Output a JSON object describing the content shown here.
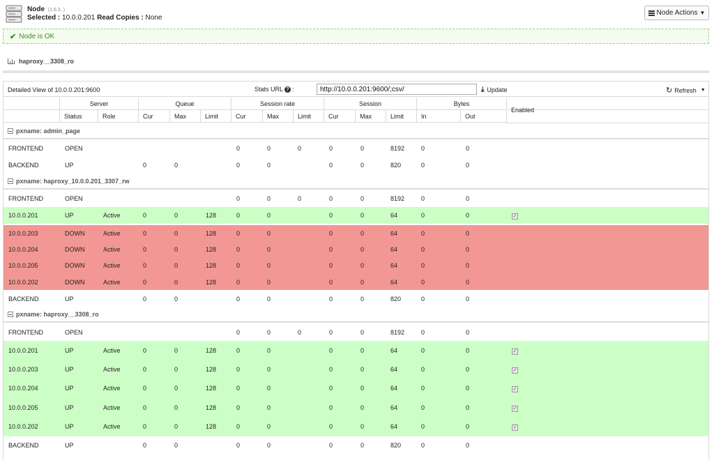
{
  "header": {
    "title": "Node",
    "version": "(1.6.3, )",
    "selected_label": "Selected :",
    "selected_value": "10.0.0.201",
    "read_copies_label": "Read Copies :",
    "read_copies_value": "None",
    "actions_button": "Node Actions"
  },
  "status": {
    "message": "Node is OK",
    "color": "#3c8f1e"
  },
  "section": {
    "title": "haproxy__3308_ro"
  },
  "toolbar": {
    "detail_label": "Detailed View of 10.0.0.201:9600",
    "stats_url_label": "Stats URL",
    "stats_url_value": "http://10.0.0.201:9600/;csv/",
    "update_label": "Update",
    "refresh_label": "Refresh"
  },
  "columns": {
    "groups": [
      "Server",
      "Queue",
      "Session rate",
      "Session",
      "Bytes",
      "Enabled"
    ],
    "subs": [
      "Status",
      "Role",
      "Cur",
      "Max",
      "Limit",
      "Cur",
      "Max",
      "Limit",
      "Cur",
      "Max",
      "Limit",
      "In",
      "Out"
    ]
  },
  "groups": [
    {
      "title": "pxname: admin_page",
      "rows": [
        {
          "state": "plain",
          "cells": [
            "FRONTEND",
            "OPEN",
            "",
            "",
            "",
            "",
            "0",
            "0",
            "0",
            "0",
            "0",
            "8192",
            "0",
            "0"
          ],
          "enabled": false
        },
        {
          "state": "plain",
          "cells": [
            "BACKEND",
            "UP",
            "",
            "0",
            "0",
            "",
            "0",
            "0",
            "",
            "0",
            "0",
            "820",
            "0",
            "0"
          ],
          "enabled": false
        }
      ]
    },
    {
      "title": "pxname: haproxy_10.0.0.201_3307_rw",
      "rows": [
        {
          "state": "plain",
          "cells": [
            "FRONTEND",
            "OPEN",
            "",
            "",
            "",
            "",
            "0",
            "0",
            "0",
            "0",
            "0",
            "8192",
            "0",
            "0"
          ],
          "enabled": false
        },
        {
          "state": "ok",
          "cells": [
            "10.0.0.201",
            "UP",
            "Active",
            "0",
            "0",
            "128",
            "0",
            "0",
            "",
            "0",
            "0",
            "64",
            "0",
            "0"
          ],
          "enabled": true
        },
        {
          "state": "down",
          "cells": [
            "10.0.0.203",
            "DOWN",
            "Active",
            "0",
            "0",
            "128",
            "0",
            "0",
            "",
            "0",
            "0",
            "64",
            "0",
            "0"
          ],
          "enabled": false
        },
        {
          "state": "down",
          "cells": [
            "10.0.0.204",
            "DOWN",
            "Active",
            "0",
            "0",
            "128",
            "0",
            "0",
            "",
            "0",
            "0",
            "64",
            "0",
            "0"
          ],
          "enabled": false
        },
        {
          "state": "down",
          "cells": [
            "10.0.0.205",
            "DOWN",
            "Active",
            "0",
            "0",
            "128",
            "0",
            "0",
            "",
            "0",
            "0",
            "64",
            "0",
            "0"
          ],
          "enabled": false
        },
        {
          "state": "down",
          "cells": [
            "10.0.0.202",
            "DOWN",
            "Active",
            "0",
            "0",
            "128",
            "0",
            "0",
            "",
            "0",
            "0",
            "64",
            "0",
            "0"
          ],
          "enabled": false
        },
        {
          "state": "plain",
          "cells": [
            "BACKEND",
            "UP",
            "",
            "0",
            "0",
            "",
            "0",
            "0",
            "",
            "0",
            "0",
            "820",
            "0",
            "0"
          ],
          "enabled": false
        }
      ]
    },
    {
      "title": "pxname: haproxy__3308_ro",
      "rows": [
        {
          "state": "plain",
          "cells": [
            "FRONTEND",
            "OPEN",
            "",
            "",
            "",
            "",
            "0",
            "0",
            "0",
            "0",
            "0",
            "8192",
            "0",
            "0"
          ],
          "enabled": false
        },
        {
          "state": "ok",
          "cells": [
            "10.0.0.201",
            "UP",
            "Active",
            "0",
            "0",
            "128",
            "0",
            "0",
            "",
            "0",
            "0",
            "64",
            "0",
            "0"
          ],
          "enabled": true
        },
        {
          "state": "ok",
          "cells": [
            "10.0.0.203",
            "UP",
            "Active",
            "0",
            "0",
            "128",
            "0",
            "0",
            "",
            "0",
            "0",
            "64",
            "0",
            "0"
          ],
          "enabled": true
        },
        {
          "state": "ok",
          "cells": [
            "10.0.0.204",
            "UP",
            "Active",
            "0",
            "0",
            "128",
            "0",
            "0",
            "",
            "0",
            "0",
            "64",
            "0",
            "0"
          ],
          "enabled": true
        },
        {
          "state": "ok",
          "cells": [
            "10.0.0.205",
            "UP",
            "Active",
            "0",
            "0",
            "128",
            "0",
            "0",
            "",
            "0",
            "0",
            "64",
            "0",
            "0"
          ],
          "enabled": true
        },
        {
          "state": "ok",
          "cells": [
            "10.0.0.202",
            "UP",
            "Active",
            "0",
            "0",
            "128",
            "0",
            "0",
            "",
            "0",
            "0",
            "64",
            "0",
            "0"
          ],
          "enabled": true
        },
        {
          "state": "plain",
          "cells": [
            "BACKEND",
            "UP",
            "",
            "0",
            "0",
            "",
            "0",
            "0",
            "",
            "0",
            "0",
            "820",
            "0",
            "0"
          ],
          "enabled": false
        }
      ]
    }
  ],
  "colors": {
    "row_ok": "#ccffc6",
    "row_down": "#f29793"
  }
}
